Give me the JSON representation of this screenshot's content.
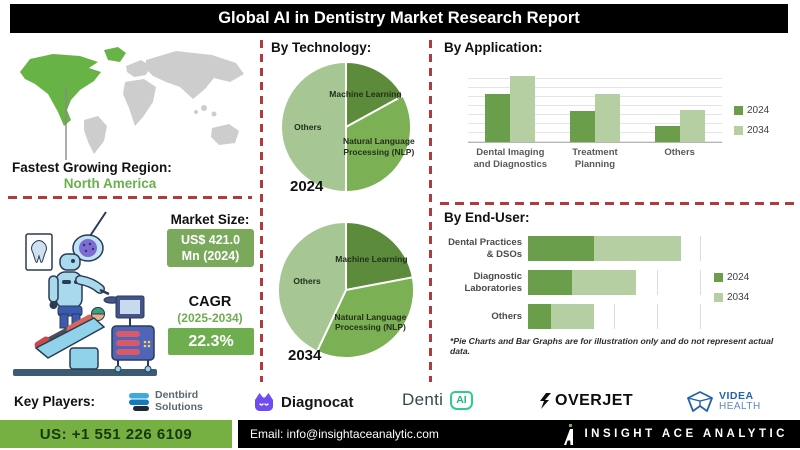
{
  "title": "Global AI in Dentistry Market Research Report",
  "region": {
    "label": "Fastest Growing Region:",
    "value": "North America",
    "highlight_color": "#6ab04c"
  },
  "market": {
    "heading": "Market Size:",
    "size_line1": "US$ 421.0",
    "size_line2": "Mn (2024)",
    "box_color": "#7aa95c",
    "cagr_label": "CAGR",
    "cagr_period": "(2025-2034)",
    "cagr_period_color": "#6fae4e",
    "cagr_value": "22.3%",
    "cagr_box_color": "#6fae4e"
  },
  "sections": {
    "technology": "By Technology:"
  },
  "chart_data": [
    {
      "type": "pie",
      "title": "By Technology:",
      "year_label": "2024",
      "slices": [
        {
          "label": "Machine Learning",
          "value": 17,
          "color": "#5c8b3c"
        },
        {
          "label": "Natural Language Processing (NLP)",
          "value": 33,
          "color": "#7cb054"
        },
        {
          "label": "Others",
          "value": 50,
          "color": "#a6c694"
        }
      ]
    },
    {
      "type": "pie",
      "title": "By Technology:",
      "year_label": "2034",
      "slices": [
        {
          "label": "Machine Learning",
          "value": 22,
          "color": "#5c8b3c"
        },
        {
          "label": "Natural Language Processing (NLP)",
          "value": 35,
          "color": "#7cb054"
        },
        {
          "label": "Others",
          "value": 43,
          "color": "#a6c694"
        }
      ]
    },
    {
      "type": "bar",
      "title": "By Application:",
      "categories": [
        "Dental Imaging and Diagnostics",
        "Treatment Planning",
        "Others"
      ],
      "series": [
        {
          "name": "2024",
          "color": "#6b9e4a",
          "values": [
            67,
            43,
            22
          ]
        },
        {
          "name": "2034",
          "color": "#b5cfa2",
          "values": [
            91,
            67,
            45
          ]
        }
      ],
      "ylim": [
        0,
        100
      ],
      "grid": true,
      "legend_position": "right"
    },
    {
      "type": "stacked-horizontal-bar",
      "title": "By End-User:",
      "categories": [
        "Dental Practices & DSOs",
        "Diagnostic Laboratories",
        "Others"
      ],
      "series": [
        {
          "name": "2024",
          "color": "#6b9e4a",
          "values": [
            38,
            25,
            13
          ]
        },
        {
          "name": "2034",
          "color": "#b5cfa2",
          "values": [
            50,
            37,
            25
          ]
        }
      ],
      "xlim": [
        0,
        100
      ],
      "grid": true,
      "legend_position": "right"
    }
  ],
  "note": "*Pie Charts and Bar Graphs are for illustration only and do not represent actual data.",
  "key_players": {
    "label": "Key Players:",
    "players": [
      {
        "name_line1": "Dentbird",
        "name_line2": "Solutions"
      },
      {
        "name": "Diagnocat"
      },
      {
        "name": "Denti",
        "badge": "AI"
      },
      {
        "name": "OVERJET"
      },
      {
        "name_line1": "VIDEA",
        "name_line2": "HEALTH"
      }
    ]
  },
  "footer": {
    "phone": "US: +1 551 226 6109",
    "phone_bg": "#76b043",
    "email": "Email: info@insightaceanalytic.com",
    "brand": "INSIGHT ACE ANALYTIC"
  },
  "colors": {
    "divider_red": "#b13a3c",
    "map_highlight": "#67b346",
    "map_gray": "#cdcdcd"
  }
}
